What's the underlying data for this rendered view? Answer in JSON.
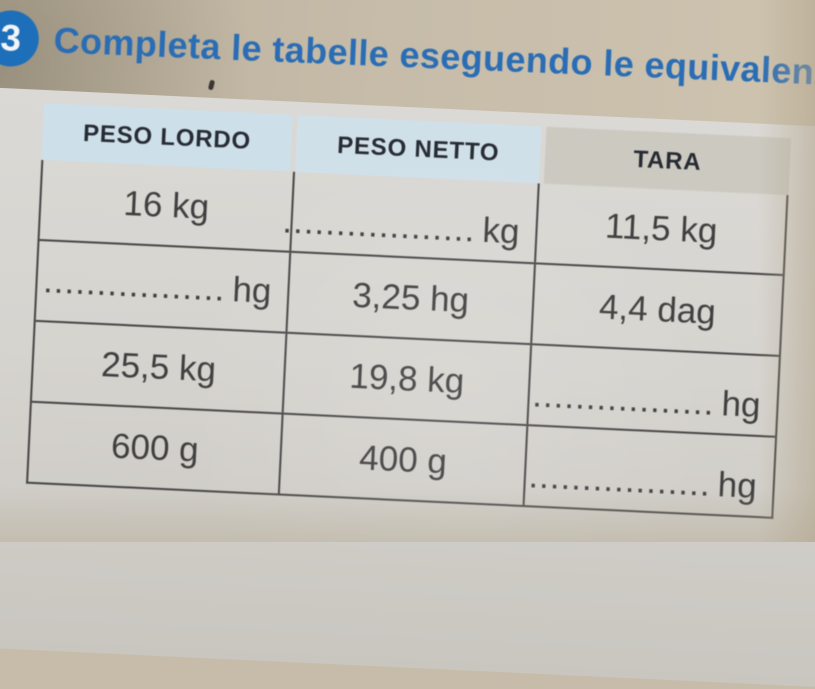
{
  "exercise": {
    "number": "3",
    "title": "Completa le tabelle eseguendo le equivalenze"
  },
  "table": {
    "headers": [
      "PESO LORDO",
      "PESO NETTO",
      "TARA"
    ],
    "rows": [
      {
        "peso_lordo": {
          "value": "16 kg"
        },
        "peso_netto": {
          "dots": "..................",
          "unit": "kg"
        },
        "tara": {
          "value": "11,5 kg"
        }
      },
      {
        "peso_lordo": {
          "dots": ".................",
          "unit": "hg"
        },
        "peso_netto": {
          "value": "3,25 hg"
        },
        "tara": {
          "value": "4,4 dag"
        }
      },
      {
        "peso_lordo": {
          "value": "25,5 kg"
        },
        "peso_netto": {
          "value": "19,8 kg"
        },
        "tara": {
          "dots": ".................",
          "unit": "hg"
        }
      },
      {
        "peso_lordo": {
          "value": "600 g"
        },
        "peso_netto": {
          "value": "400 g"
        },
        "tara": {
          "dots": ".................",
          "unit": "hg"
        }
      }
    ]
  },
  "colors": {
    "title_blue": "#2a6db5",
    "badge_blue": "#1e6fba",
    "header_blue_bg": "#cddfe9",
    "tara_header_bg": "#ccc9c1",
    "grid_border": "#454545",
    "page_bg": "#d6d4cf",
    "desk_bg": "#c6bca9"
  }
}
